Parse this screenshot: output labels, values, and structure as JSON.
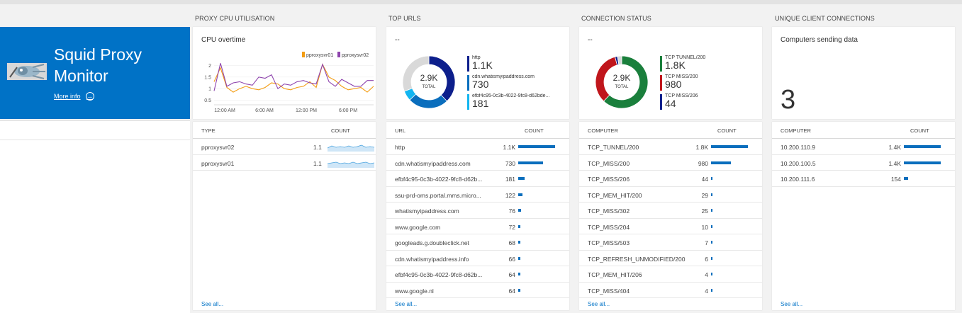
{
  "hero": {
    "title_line1": "Squid Proxy",
    "title_line2": "Monitor",
    "more_info": "More info"
  },
  "colors": {
    "accent": "#0072c6",
    "series1": "#f39c12",
    "series2": "#8e44ad",
    "donut_navy": "#0d1f8c",
    "donut_blue": "#0a6ebd",
    "donut_cyan": "#12b5f0",
    "donut_green": "#1a7f3c",
    "donut_red": "#c0161c",
    "donut_grey": "#d9d9d9"
  },
  "cpu": {
    "blade_title": "PROXY CPU UTILISATION",
    "tile_title": "CPU overtime",
    "list_headers": [
      "TYPE",
      "COUNT"
    ],
    "rows": [
      {
        "type": "pproxysvr02",
        "count": "1.1"
      },
      {
        "type": "pproxysvr01",
        "count": "1.1"
      }
    ],
    "see_all": "See all..."
  },
  "urls": {
    "blade_title": "TOP URLS",
    "tile_title": "--",
    "donut_total": "2.9K",
    "donut_total_label": "TOTAL",
    "legend": [
      {
        "label": "http",
        "value": "1.1K"
      },
      {
        "label": "cdn.whatismyipaddress.com",
        "value": "730"
      },
      {
        "label": "efbf4c95-0c3b-4022-9fc8-d62bde...",
        "value": "181"
      }
    ],
    "list_headers": [
      "URL",
      "COUNT"
    ],
    "rows": [
      {
        "name": "http",
        "count": "1.1K",
        "v": 1100
      },
      {
        "name": "cdn.whatismyipaddress.com",
        "count": "730",
        "v": 730
      },
      {
        "name": "efbf4c95-0c3b-4022-9fc8-d62b...",
        "count": "181",
        "v": 181
      },
      {
        "name": "ssu-prd-oms.portal.mms.micro...",
        "count": "122",
        "v": 122
      },
      {
        "name": "whatismyipaddress.com",
        "count": "76",
        "v": 76
      },
      {
        "name": "www.google.com",
        "count": "72",
        "v": 72
      },
      {
        "name": "googleads.g.doubleclick.net",
        "count": "68",
        "v": 68
      },
      {
        "name": "cdn.whatismyipaddress.info",
        "count": "66",
        "v": 66
      },
      {
        "name": "efbf4c95-0c3b-4022-9fc8-d62b...",
        "count": "64",
        "v": 64
      },
      {
        "name": "www.google.nl",
        "count": "64",
        "v": 64
      }
    ],
    "see_all": "See all..."
  },
  "conn": {
    "blade_title": "CONNECTION STATUS",
    "tile_title": "--",
    "donut_total": "2.9K",
    "donut_total_label": "TOTAL",
    "legend": [
      {
        "label": "TCP TUNNEL/200",
        "value": "1.8K"
      },
      {
        "label": "TCP MISS/200",
        "value": "980"
      },
      {
        "label": "TCP MISS/206",
        "value": "44"
      }
    ],
    "list_headers": [
      "COMPUTER",
      "COUNT"
    ],
    "rows": [
      {
        "name": "TCP_TUNNEL/200",
        "count": "1.8K",
        "v": 1800
      },
      {
        "name": "TCP_MISS/200",
        "count": "980",
        "v": 980
      },
      {
        "name": "TCP_MISS/206",
        "count": "44",
        "v": 44
      },
      {
        "name": "TCP_MEM_HIT/200",
        "count": "29",
        "v": 29
      },
      {
        "name": "TCP_MISS/302",
        "count": "25",
        "v": 25
      },
      {
        "name": "TCP_MISS/204",
        "count": "10",
        "v": 10
      },
      {
        "name": "TCP_MISS/503",
        "count": "7",
        "v": 7
      },
      {
        "name": "TCP_REFRESH_UNMODIFIED/200",
        "count": "6",
        "v": 6
      },
      {
        "name": "TCP_MEM_HIT/206",
        "count": "4",
        "v": 4
      },
      {
        "name": "TCP_MISS/404",
        "count": "4",
        "v": 4
      }
    ],
    "see_all": "See all..."
  },
  "clients": {
    "blade_title": "UNIQUE CLIENT CONNECTIONS",
    "tile_title": "Computers sending data",
    "big_number": "3",
    "list_headers": [
      "COMPUTER",
      "COUNT"
    ],
    "rows": [
      {
        "name": "10.200.110.9",
        "count": "1.4K",
        "v": 1400
      },
      {
        "name": "10.200.100.5",
        "count": "1.4K",
        "v": 1400
      },
      {
        "name": "10.200.111.6",
        "count": "154",
        "v": 154
      }
    ],
    "see_all": "See all..."
  },
  "chart_data": [
    {
      "type": "line",
      "title": "CPU overtime",
      "x_ticks": [
        "12:00 AM",
        "6:00 AM",
        "12:00 PM",
        "6:00 PM"
      ],
      "y_ticks": [
        "2",
        "1.5",
        "1",
        "0.5"
      ],
      "ylim": [
        0.3,
        2.2
      ],
      "legend_placement": "top-right",
      "series": [
        {
          "name": "pproxysvr01",
          "color": "#f39c12",
          "values": [
            1.3,
            1.9,
            1.05,
            0.85,
            1.0,
            1.1,
            1.0,
            0.95,
            1.05,
            1.25,
            1.2,
            1.0,
            0.95,
            1.05,
            1.1,
            1.3,
            1.05,
            2.05,
            1.5,
            1.35,
            1.1,
            0.95,
            1.0,
            1.05,
            0.85,
            1.1
          ]
        },
        {
          "name": "pproxysvr02",
          "color": "#8e44ad",
          "values": [
            0.9,
            2.1,
            1.1,
            1.25,
            1.3,
            1.2,
            1.15,
            1.5,
            1.45,
            1.6,
            1.0,
            1.2,
            1.15,
            1.3,
            1.35,
            1.25,
            1.2,
            2.05,
            1.3,
            1.1,
            1.4,
            1.25,
            1.1,
            1.1,
            1.35,
            1.35
          ]
        }
      ]
    },
    {
      "type": "pie",
      "title": "TOP URLS",
      "categories": [
        "http",
        "cdn.whatismyipaddress.com",
        "efbf4c95-0c3b-4022-9fc8-d62bde...",
        "other"
      ],
      "values": [
        1100,
        730,
        181,
        889
      ]
    },
    {
      "type": "pie",
      "title": "CONNECTION STATUS",
      "categories": [
        "TCP TUNNEL/200",
        "TCP MISS/200",
        "TCP MISS/206",
        "other"
      ],
      "values": [
        1800,
        980,
        44,
        76
      ]
    }
  ]
}
